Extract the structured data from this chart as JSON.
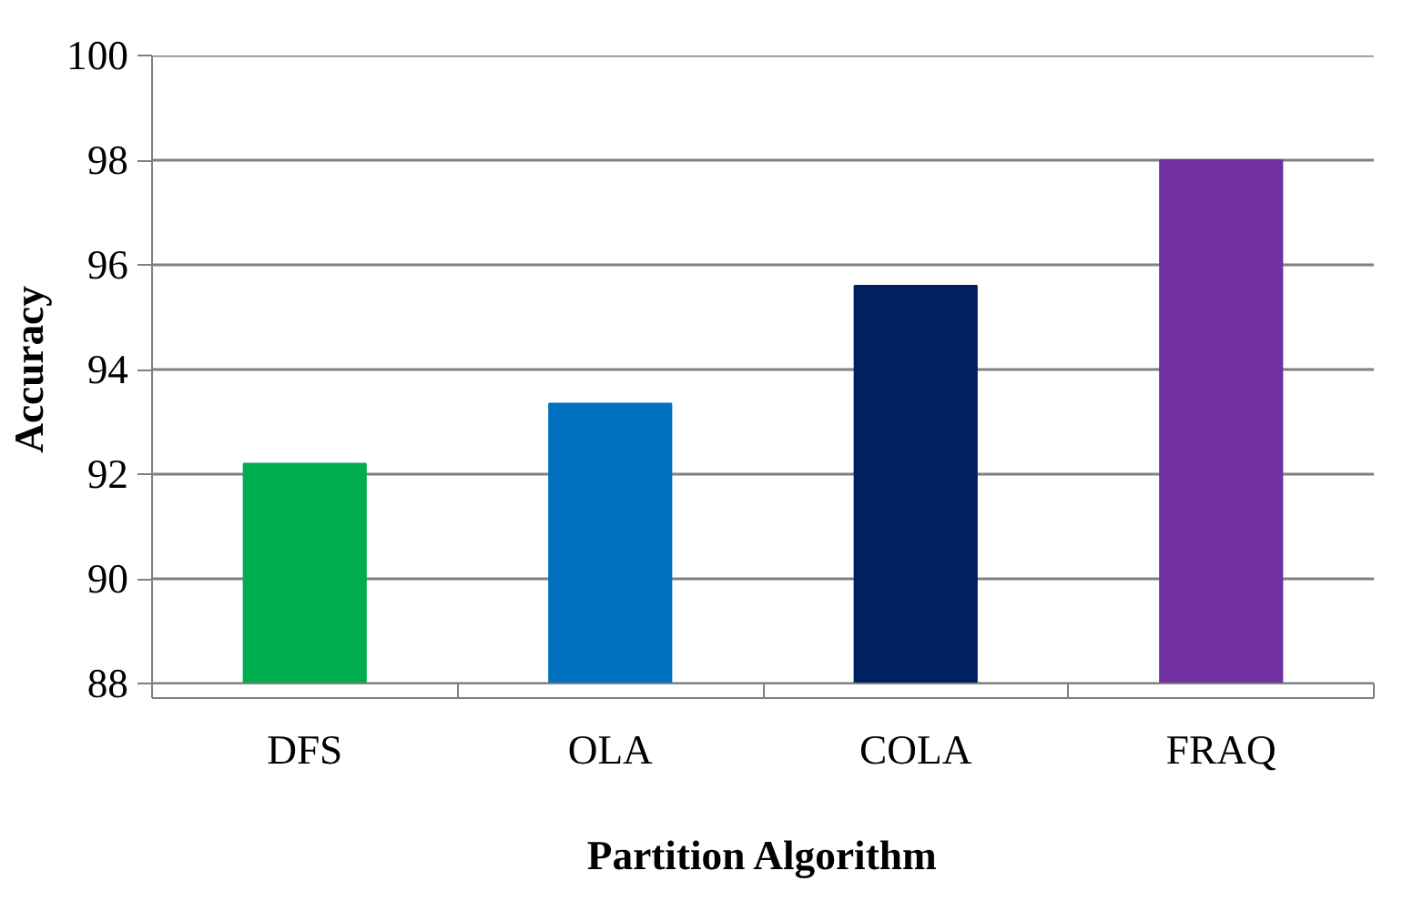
{
  "chart_data": {
    "type": "bar",
    "xlabel": "Partition Algorithm",
    "ylabel": "Accuracy",
    "categories": [
      "DFS",
      "OLA",
      "COLA",
      "FRAQ"
    ],
    "values": [
      92.2,
      93.35,
      95.6,
      98.0
    ],
    "colors": [
      "#00ad4e",
      "#0070c0",
      "#002060",
      "#7030a0"
    ],
    "ylim": [
      88,
      100
    ],
    "yticks": [
      88,
      90,
      92,
      94,
      96,
      98,
      100
    ],
    "grid": "y"
  }
}
